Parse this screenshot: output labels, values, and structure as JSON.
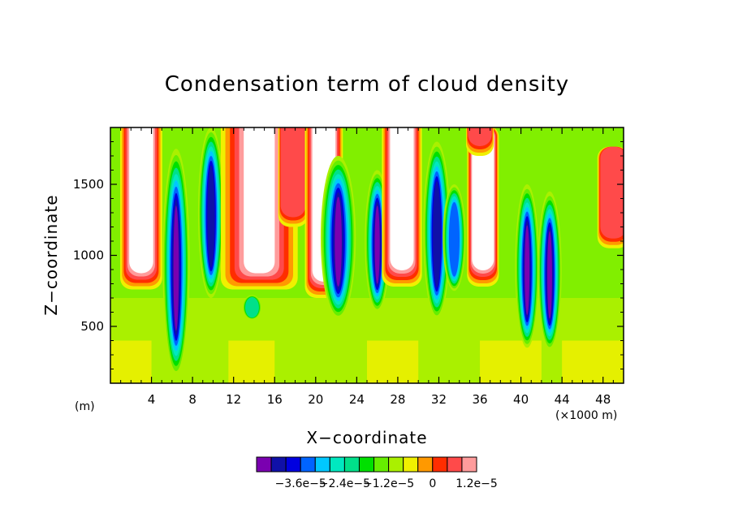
{
  "chart_data": {
    "type": "heatmap",
    "title": "Condensation term of cloud density",
    "xlabel": "X−coordinate",
    "ylabel": "Z−coordinate",
    "x_unit_left": "(m)",
    "x_unit_right": "(×1000 m)",
    "xlim": [
      0,
      50
    ],
    "ylim": [
      100,
      1900
    ],
    "x_ticks": [
      4,
      8,
      12,
      16,
      20,
      24,
      28,
      32,
      36,
      40,
      44,
      48
    ],
    "x_tick_labels": [
      "4",
      "8",
      "12",
      "16",
      "20",
      "24",
      "28",
      "32",
      "36",
      "40",
      "44",
      "48"
    ],
    "y_ticks": [
      500,
      1000,
      1500
    ],
    "y_tick_labels": [
      "500",
      "1000",
      "1500"
    ],
    "colorbar": {
      "colors": [
        "#7a00b0",
        "#1010a8",
        "#0000e0",
        "#0064ff",
        "#00c8ff",
        "#00e8c0",
        "#00e08a",
        "#00e000",
        "#66ee00",
        "#aaf000",
        "#f0f000",
        "#ff9900",
        "#ff2d00",
        "#ff4a4a",
        "#ff9c9c"
      ],
      "labels": [
        "−3.6e−5",
        "−2.4e−5",
        "−1.2e−5",
        "0",
        "1.2e−5"
      ],
      "label_boundary_index": [
        3,
        6,
        9,
        12,
        15
      ]
    },
    "background_level_color": "#aaf000",
    "features": [
      {
        "kind": "updraft",
        "x": 3.0,
        "half_width": 1.1,
        "top": 1900,
        "bottom": 760,
        "extent": "full"
      },
      {
        "kind": "downdraft",
        "x": 6.4,
        "half_width": 0.6,
        "top": 1750,
        "bottom": 150,
        "min": -3.6e-05
      },
      {
        "kind": "downdraft",
        "x": 9.8,
        "half_width": 0.55,
        "top": 1900,
        "bottom": 700,
        "min": -3e-05
      },
      {
        "kind": "updraft",
        "x": 14.5,
        "half_width": 2.8,
        "top": 1900,
        "bottom": 760,
        "extent": "full"
      },
      {
        "kind": "downdraft",
        "x": 13.8,
        "half_width": 0.2,
        "top": 720,
        "bottom": 550,
        "min": -1.2e-05
      },
      {
        "kind": "updraft",
        "x": 17.8,
        "half_width": 0.5,
        "top": 1900,
        "bottom": 1200,
        "extent": "partial"
      },
      {
        "kind": "updraft",
        "x": 20.8,
        "half_width": 0.9,
        "top": 1900,
        "bottom": 700,
        "extent": "full"
      },
      {
        "kind": "downdraft",
        "x": 22.2,
        "half_width": 1.0,
        "top": 1700,
        "bottom": 550,
        "min": -3.6e-05
      },
      {
        "kind": "downdraft",
        "x": 26.0,
        "half_width": 0.5,
        "top": 1600,
        "bottom": 600,
        "min": -3.6e-05
      },
      {
        "kind": "updraft",
        "x": 28.4,
        "half_width": 1.0,
        "top": 1900,
        "bottom": 780,
        "extent": "full"
      },
      {
        "kind": "downdraft",
        "x": 31.8,
        "half_width": 0.6,
        "top": 1800,
        "bottom": 550,
        "min": -3e-05
      },
      {
        "kind": "downdraft",
        "x": 33.5,
        "half_width": 0.4,
        "top": 1500,
        "bottom": 750,
        "min": -2.4e-05
      },
      {
        "kind": "updraft",
        "x": 36.3,
        "half_width": 0.6,
        "top": 1800,
        "bottom": 780,
        "extent": "full"
      },
      {
        "kind": "updraft",
        "x": 36.0,
        "half_width": 0.4,
        "top": 1900,
        "bottom": 1700,
        "extent": "partial"
      },
      {
        "kind": "downdraft",
        "x": 40.6,
        "half_width": 0.45,
        "top": 1500,
        "bottom": 350,
        "min": -3.6e-05
      },
      {
        "kind": "downdraft",
        "x": 42.8,
        "half_width": 0.45,
        "top": 1450,
        "bottom": 330,
        "min": -3.6e-05
      },
      {
        "kind": "updraft",
        "x": 49.0,
        "half_width": 0.6,
        "top": 1650,
        "bottom": 1050,
        "extent": "partial"
      }
    ]
  }
}
